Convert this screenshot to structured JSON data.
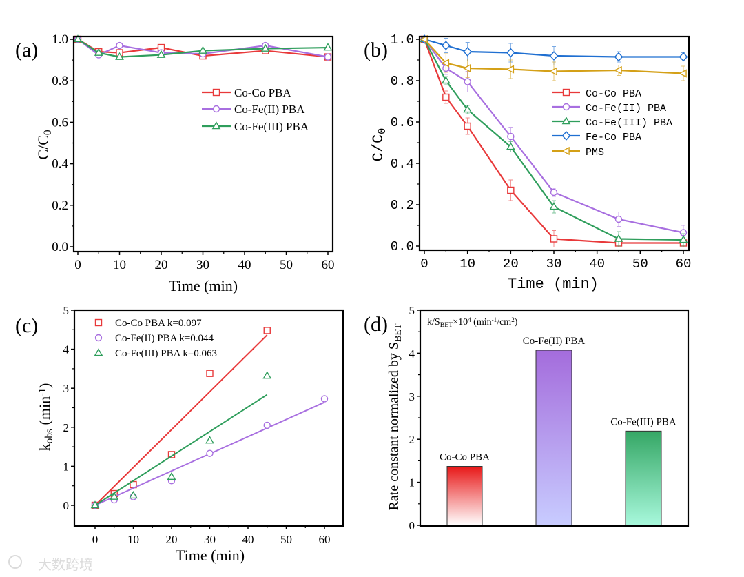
{
  "chart_data": [
    {
      "panel": "(a)",
      "type": "line",
      "xlabel": "Time (min)",
      "ylabel": [
        [
          "C/C",
          "n"
        ],
        [
          "0",
          "sub"
        ]
      ],
      "xlim": [
        -1,
        61
      ],
      "ylim": [
        0,
        1.0
      ],
      "xticks": [
        0,
        10,
        20,
        30,
        40,
        50,
        60
      ],
      "yticks": [
        "0.0",
        "0.2",
        "0.4",
        "0.6",
        "0.8",
        "1.0"
      ],
      "legend_position": "center-right",
      "x": [
        0,
        5,
        10,
        20,
        30,
        45,
        60
      ],
      "series": [
        {
          "name": "Co-Co PBA",
          "color": "#e8393a",
          "marker": "square",
          "values": [
            1.0,
            0.94,
            0.935,
            0.96,
            0.92,
            0.945,
            0.915
          ]
        },
        {
          "name": "Co-Fe(II) PBA",
          "color": "#a86fe0",
          "marker": "circle",
          "values": [
            1.0,
            0.925,
            0.97,
            0.935,
            0.93,
            0.97,
            0.915
          ]
        },
        {
          "name": "Co-Fe(III) PBA",
          "color": "#2f9e5c",
          "marker": "triangle",
          "values": [
            1.0,
            0.935,
            0.915,
            0.925,
            0.945,
            0.955,
            0.96
          ]
        }
      ]
    },
    {
      "panel": "(b)",
      "type": "line",
      "xlabel": "Time (min)",
      "ylabel": [
        [
          "C/C",
          "n"
        ],
        [
          "0",
          "sub"
        ]
      ],
      "xlim": [
        -1,
        61
      ],
      "ylim": [
        0,
        1.0
      ],
      "xticks": [
        0,
        10,
        20,
        30,
        40,
        50,
        60
      ],
      "yticks": [
        "0.0",
        "0.2",
        "0.4",
        "0.6",
        "0.8",
        "1.0"
      ],
      "legend_position": "center-right",
      "x": [
        0,
        5,
        10,
        20,
        30,
        45,
        60
      ],
      "series": [
        {
          "name": "Co-Co PBA",
          "color": "#e8393a",
          "marker": "square",
          "values": [
            1.0,
            0.72,
            0.58,
            0.27,
            0.035,
            0.015,
            0.015
          ],
          "errors": [
            0,
            0.03,
            0.04,
            0.05,
            0.04,
            0.02,
            0.02
          ]
        },
        {
          "name": "Co-Fe(II) PBA",
          "color": "#a86fe0",
          "marker": "circle",
          "values": [
            1.0,
            0.86,
            0.795,
            0.53,
            0.26,
            0.13,
            0.065
          ],
          "errors": [
            0,
            0.03,
            0.05,
            0.045,
            0.02,
            0.035,
            0.035
          ]
        },
        {
          "name": "Co-Fe(III) PBA",
          "color": "#2f9e5c",
          "marker": "triangle",
          "values": [
            1.0,
            0.8,
            0.66,
            0.48,
            0.19,
            0.035,
            0.03
          ],
          "errors": [
            0,
            0.02,
            0.02,
            0.025,
            0.03,
            0.035,
            0.03
          ]
        },
        {
          "name": "Fe-Co PBA",
          "color": "#1f6fd1",
          "marker": "diamond",
          "values": [
            1.0,
            0.97,
            0.94,
            0.935,
            0.92,
            0.915,
            0.915
          ],
          "errors": [
            0,
            0.035,
            0.045,
            0.045,
            0.045,
            0.025,
            0.02
          ]
        },
        {
          "name": "PMS",
          "color": "#d4a017",
          "marker": "left-triangle",
          "values": [
            1.0,
            0.885,
            0.86,
            0.855,
            0.845,
            0.85,
            0.835
          ],
          "errors": [
            0,
            0.045,
            0.045,
            0.045,
            0.045,
            0.025,
            0.035
          ]
        }
      ]
    },
    {
      "panel": "(c)",
      "type": "scatter",
      "xlabel": "Time (min)",
      "ylabel": [
        [
          "k",
          "n"
        ],
        [
          "obs",
          "sub"
        ],
        [
          " (min",
          "n"
        ],
        [
          "-1",
          "sup"
        ],
        [
          ")",
          "n"
        ]
      ],
      "xlim": [
        -5,
        65
      ],
      "ylim": [
        -0.5,
        5
      ],
      "xticks": [
        0,
        10,
        20,
        30,
        40,
        50,
        60
      ],
      "yticks": [
        "0",
        "1",
        "2",
        "3",
        "4",
        "5"
      ],
      "legend_position": "top-left",
      "series": [
        {
          "name": "Co-Co PBA k=0.097",
          "color": "#e8393a",
          "marker": "square",
          "k": 0.097,
          "fit_xmax": 45,
          "x": [
            0,
            5,
            10,
            20,
            30,
            45
          ],
          "values": [
            0,
            0.3,
            0.53,
            1.3,
            3.38,
            4.48
          ]
        },
        {
          "name": "Co-Fe(II) PBA k=0.044",
          "color": "#a86fe0",
          "marker": "circle",
          "k": 0.044,
          "fit_xmax": 60,
          "x": [
            0,
            5,
            10,
            20,
            30,
            45,
            60
          ],
          "values": [
            0,
            0.14,
            0.22,
            0.63,
            1.33,
            2.05,
            2.73
          ]
        },
        {
          "name": "Co-Fe(III) PBA k=0.063",
          "color": "#2f9e5c",
          "marker": "triangle",
          "k": 0.063,
          "fit_xmax": 45,
          "x": [
            0,
            5,
            10,
            20,
            30,
            45
          ],
          "values": [
            0,
            0.22,
            0.25,
            0.73,
            1.66,
            3.32
          ]
        }
      ]
    },
    {
      "panel": "(d)",
      "type": "bar",
      "ylabel": [
        [
          "Rate constant normalized by S",
          "n"
        ],
        [
          "BET",
          "sub"
        ]
      ],
      "annotation": [
        [
          "k/S",
          "n"
        ],
        [
          "BET",
          "sub"
        ],
        [
          "×10",
          "n"
        ],
        [
          "4",
          "sup"
        ],
        [
          " (min",
          "n"
        ],
        [
          "-1",
          "sup"
        ],
        [
          "/cm",
          "n"
        ],
        [
          "2",
          "sup"
        ],
        [
          ")",
          "n"
        ]
      ],
      "ylim": [
        0,
        5
      ],
      "yticks": [
        "0",
        "1",
        "2",
        "3",
        "4",
        "5"
      ],
      "categories": [
        "Co-Co PBA",
        "Co-Fe(II) PBA",
        "Co-Fe(III) PBA"
      ],
      "values": [
        1.37,
        4.07,
        2.19
      ],
      "colors": [
        [
          "#e81818",
          "#ffffff"
        ],
        [
          "#a46cdc",
          "#c8ccff"
        ],
        [
          "#35a765",
          "#a8f8dc"
        ]
      ]
    }
  ],
  "watermark": "大数跨境"
}
